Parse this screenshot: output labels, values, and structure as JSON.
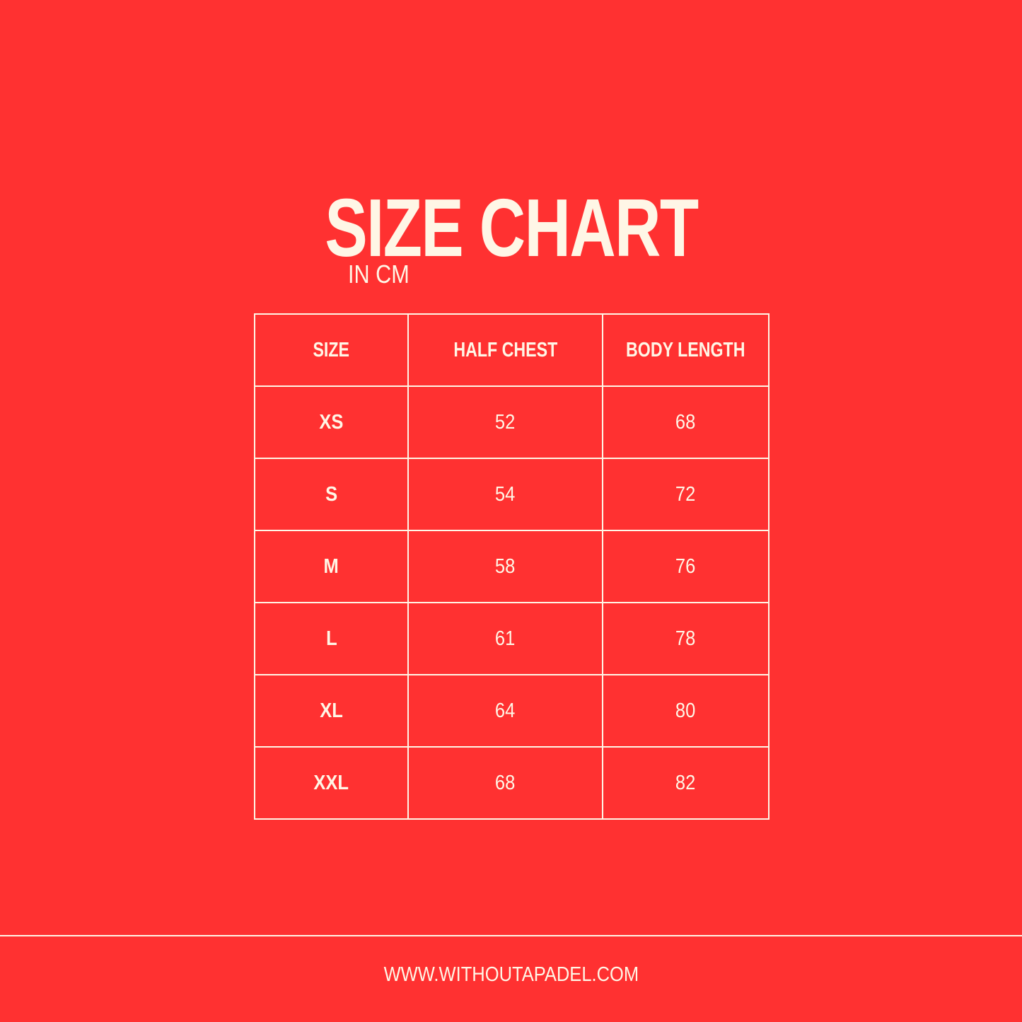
{
  "title": "SIZE CHART",
  "subtitle": "IN CM",
  "colors": {
    "background": "#FF3131",
    "text": "#FFF6E6"
  },
  "table": {
    "headers": [
      "SIZE",
      "HALF CHEST",
      "BODY LENGTH"
    ],
    "rows": [
      [
        "XS",
        "52",
        "68"
      ],
      [
        "S",
        "54",
        "72"
      ],
      [
        "M",
        "58",
        "76"
      ],
      [
        "L",
        "61",
        "78"
      ],
      [
        "XL",
        "64",
        "80"
      ],
      [
        "XXL",
        "68",
        "82"
      ]
    ]
  },
  "footer": "WWW.WITHOUTAPADEL.COM"
}
